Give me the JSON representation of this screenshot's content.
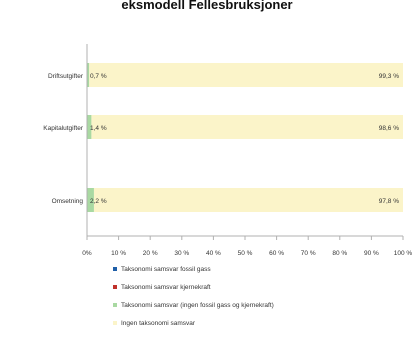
{
  "chart_data": {
    "type": "bar",
    "orientation": "horizontal",
    "stacked": true,
    "title": "eksmodell Fellesbruksjoner",
    "categories": [
      "Driftsutgifter",
      "Kapitalutgifter",
      "Omsetning"
    ],
    "series": [
      {
        "name": "Taksonomi samsvar fossil gass",
        "values": [
          0,
          0,
          0
        ]
      },
      {
        "name": "Taksonomi samsvar kjernekraft",
        "values": [
          0,
          0,
          0
        ]
      },
      {
        "name": "Taksonomi samsvar (ingen fossil gass og kjernekraft)",
        "values": [
          0.7,
          1.4,
          2.2
        ]
      },
      {
        "name": "Ingen taksonomi samsvar",
        "values": [
          99.3,
          98.6,
          97.8
        ]
      }
    ],
    "data_labels": [
      {
        "category": "Driftsutgifter",
        "left": "0,7 %",
        "right": "99,3 %"
      },
      {
        "category": "Kapitalutgifter",
        "left": "1,4 %",
        "right": "98,6 %"
      },
      {
        "category": "Omsetning",
        "left": "2,2 %",
        "right": "97,8 %"
      }
    ],
    "xlim": [
      0,
      100
    ],
    "xticks": [
      "0%",
      "10 %",
      "20 %",
      "30 %",
      "40 %",
      "50 %",
      "60 %",
      "70 %",
      "80 %",
      "90 %",
      "100 %"
    ],
    "grid": false,
    "legend_position": "bottom",
    "colors": {
      "fossil_gas": "#1f5fa8",
      "nuclear": "#c0312b",
      "aligned": "#a9d9a2",
      "not_aligned": "#fbf4c9",
      "axis": "#b0b0b0",
      "text": "#333333"
    }
  }
}
